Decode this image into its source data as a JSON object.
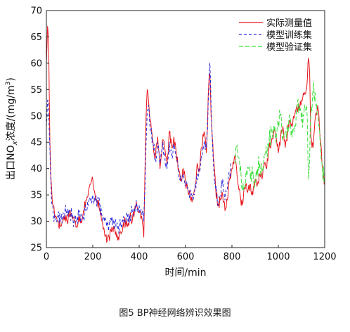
{
  "caption": "图5 BP神经网络辨识效果图",
  "chart_data": {
    "type": "line",
    "xlabel": "时间/min",
    "ylabel_prefix": "出口NO",
    "ylabel_sub": "x",
    "ylabel_mid": "浓度/(mg/m",
    "ylabel_sup": "3",
    "ylabel_suffix": ")",
    "xlim": [
      0,
      1200
    ],
    "ylim": [
      25,
      70
    ],
    "xticks": [
      0,
      200,
      400,
      600,
      800,
      1000,
      1200
    ],
    "yticks": [
      25,
      30,
      35,
      40,
      45,
      50,
      55,
      60,
      65,
      70
    ],
    "grid": false,
    "legend_position": "top-right",
    "series": [
      {
        "name": "实际测量值",
        "color": "#e8141b",
        "dash": "solid",
        "x": [
          0,
          5,
          10,
          15,
          20,
          25,
          30,
          40,
          50,
          60,
          70,
          80,
          90,
          100,
          110,
          120,
          130,
          140,
          150,
          160,
          170,
          180,
          190,
          200,
          210,
          220,
          230,
          240,
          250,
          260,
          270,
          280,
          290,
          300,
          310,
          320,
          330,
          340,
          350,
          360,
          370,
          380,
          390,
          400,
          410,
          420,
          425,
          430,
          435,
          440,
          445,
          450,
          460,
          470,
          480,
          490,
          500,
          510,
          520,
          530,
          540,
          550,
          560,
          570,
          580,
          590,
          600,
          610,
          620,
          630,
          640,
          650,
          660,
          670,
          680,
          690,
          700,
          705,
          710,
          720,
          730,
          740,
          750,
          760,
          770,
          780,
          790,
          800,
          810,
          820,
          830,
          840,
          850,
          860,
          870,
          880,
          890,
          900,
          910,
          920,
          930,
          940,
          950,
          960,
          970,
          980,
          990,
          1000,
          1010,
          1020,
          1030,
          1040,
          1050,
          1060,
          1070,
          1080,
          1090,
          1100,
          1110,
          1120,
          1125,
          1130,
          1135,
          1140,
          1150,
          1160,
          1170,
          1180,
          1190,
          1200
        ],
        "y": [
          60,
          67,
          63,
          45,
          38,
          34,
          33,
          31,
          30,
          29,
          30,
          31,
          30,
          32,
          31,
          30,
          29,
          31,
          30,
          32,
          34,
          35,
          37,
          38,
          35,
          34,
          32,
          30,
          28,
          26,
          27,
          28,
          29,
          28,
          27,
          28,
          29,
          30,
          29,
          31,
          30,
          32,
          33,
          32,
          31,
          27,
          40,
          50,
          55,
          53,
          50,
          49,
          45,
          42,
          46,
          40,
          45,
          44,
          41,
          47,
          44,
          46,
          43,
          40,
          38,
          40,
          37,
          36,
          35,
          34,
          36,
          41,
          40,
          44,
          47,
          43,
          56,
          58,
          50,
          42,
          36,
          33,
          34,
          35,
          32,
          34,
          38,
          40,
          42,
          40,
          36,
          33,
          35,
          37,
          36,
          37,
          35,
          38,
          37,
          39,
          38,
          41,
          40,
          44,
          45,
          47,
          46,
          43,
          46,
          48,
          44,
          47,
          49,
          48,
          50,
          52,
          51,
          53,
          54,
          55,
          57,
          61,
          58,
          46,
          44,
          50,
          52,
          46,
          40,
          37
        ],
        "noise": 1.0
      },
      {
        "name": "模型训练集",
        "color": "#2a2ad8",
        "dash": "4,3",
        "x": [
          0,
          5,
          10,
          15,
          20,
          25,
          30,
          40,
          50,
          60,
          70,
          80,
          90,
          100,
          110,
          120,
          130,
          140,
          150,
          160,
          170,
          180,
          190,
          200,
          210,
          220,
          230,
          240,
          250,
          260,
          270,
          280,
          290,
          300,
          310,
          320,
          330,
          340,
          350,
          360,
          370,
          380,
          390,
          400,
          410,
          420,
          425,
          430,
          435,
          440,
          445,
          450,
          460,
          470,
          480,
          490,
          500,
          510,
          520,
          530,
          540,
          550,
          560,
          570,
          580,
          590,
          600,
          610,
          620,
          630,
          640,
          650,
          660,
          670,
          680,
          690,
          700,
          705,
          710,
          720,
          730,
          740,
          750,
          760,
          770,
          780,
          790,
          800
        ],
        "y": [
          48,
          53,
          50,
          44,
          37,
          33,
          31,
          30,
          31,
          30,
          31,
          32,
          31,
          32,
          31,
          30,
          30,
          31,
          31,
          31,
          32,
          33,
          34,
          35,
          34,
          34,
          33,
          31,
          30,
          29,
          29,
          30,
          30,
          29,
          29,
          29,
          30,
          30,
          31,
          31,
          32,
          32,
          33,
          33,
          32,
          30,
          36,
          45,
          51,
          52,
          49,
          47,
          45,
          42,
          45,
          41,
          44,
          43,
          40,
          45,
          43,
          44,
          42,
          39,
          38,
          39,
          37,
          36,
          35,
          35,
          36,
          39,
          40,
          42,
          45,
          44,
          54,
          60,
          52,
          41,
          36,
          33,
          35,
          38,
          34,
          36,
          39,
          41
        ],
        "noise": 1.4
      },
      {
        "name": "模型验证集",
        "color": "#39e039",
        "dash": "6,3",
        "x": [
          810,
          820,
          830,
          840,
          850,
          860,
          870,
          880,
          890,
          900,
          910,
          920,
          930,
          940,
          950,
          960,
          970,
          980,
          990,
          1000,
          1010,
          1020,
          1030,
          1040,
          1050,
          1060,
          1070,
          1080,
          1090,
          1100,
          1110,
          1120,
          1125,
          1130,
          1135,
          1140,
          1150,
          1160,
          1170,
          1180,
          1190,
          1200
        ],
        "y": [
          41,
          44,
          42,
          38,
          36,
          39,
          40,
          38,
          39,
          37,
          40,
          41,
          40,
          42,
          43,
          45,
          47,
          48,
          45,
          49,
          50,
          46,
          47,
          48,
          50,
          46,
          47,
          51,
          52,
          49,
          50,
          52,
          49,
          38,
          42,
          50,
          55,
          54,
          50,
          45,
          40,
          38
        ],
        "noise": 1.8
      }
    ]
  }
}
